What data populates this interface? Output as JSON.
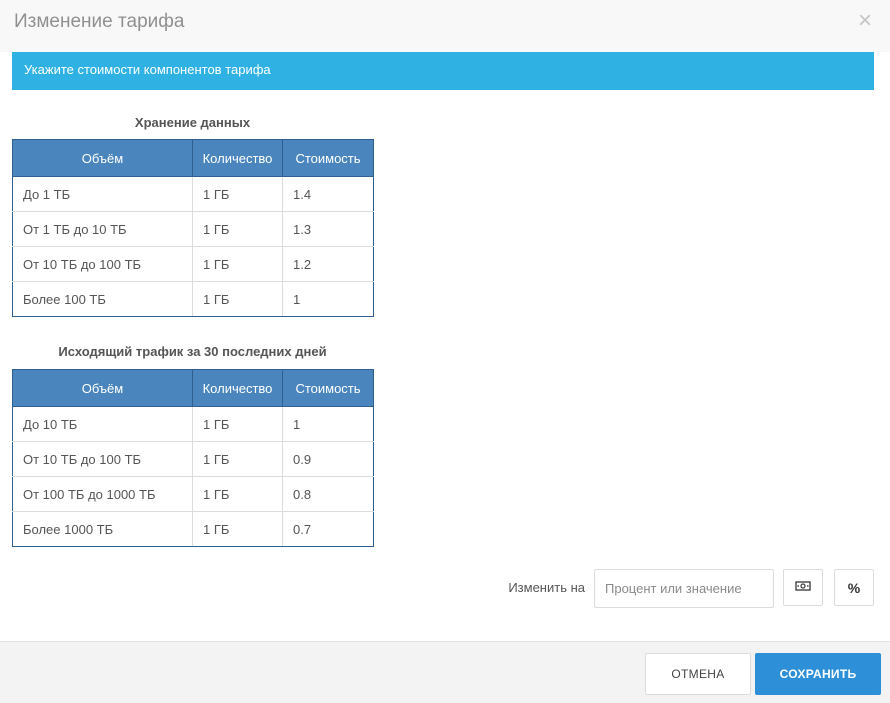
{
  "dialog": {
    "title": "Изменение тарифа",
    "close_glyph": "×",
    "alert_text": "Укажите стоимости компонентов тарифа"
  },
  "storage": {
    "title": "Хранение данных",
    "columns": [
      "Объём",
      "Количество",
      "Стоимость"
    ],
    "rows": [
      [
        "До 1 ТБ",
        "1 ГБ",
        "1.4"
      ],
      [
        "От 1 ТБ до 10 ТБ",
        "1 ГБ",
        "1.3"
      ],
      [
        "От 10 ТБ до 100 ТБ",
        "1 ГБ",
        "1.2"
      ],
      [
        "Более 100 ТБ",
        "1 ГБ",
        "1"
      ]
    ]
  },
  "traffic": {
    "title": "Исходящий трафик за 30 последних дней",
    "columns": [
      "Объём",
      "Количество",
      "Стоимость"
    ],
    "rows": [
      [
        "До 10 ТБ",
        "1 ГБ",
        "1"
      ],
      [
        "От 10 ТБ до 100 ТБ",
        "1 ГБ",
        "0.9"
      ],
      [
        "От 100 ТБ до 1000 ТБ",
        "1 ГБ",
        "0.8"
      ],
      [
        "Более 1000 ТБ",
        "1 ГБ",
        "0.7"
      ]
    ]
  },
  "change": {
    "label": "Изменить на",
    "placeholder": "Процент или значение",
    "value": "",
    "money_icon": "money-icon",
    "percent_icon": "percent-icon",
    "percent_glyph": "%"
  },
  "footer": {
    "cancel_label": "ОТМЕНА",
    "save_label": "СОХРАНИТЬ"
  },
  "colors": {
    "alert": "#2fb1e3",
    "table_header": "#4a86bd",
    "save_button": "#2d8fd8"
  }
}
